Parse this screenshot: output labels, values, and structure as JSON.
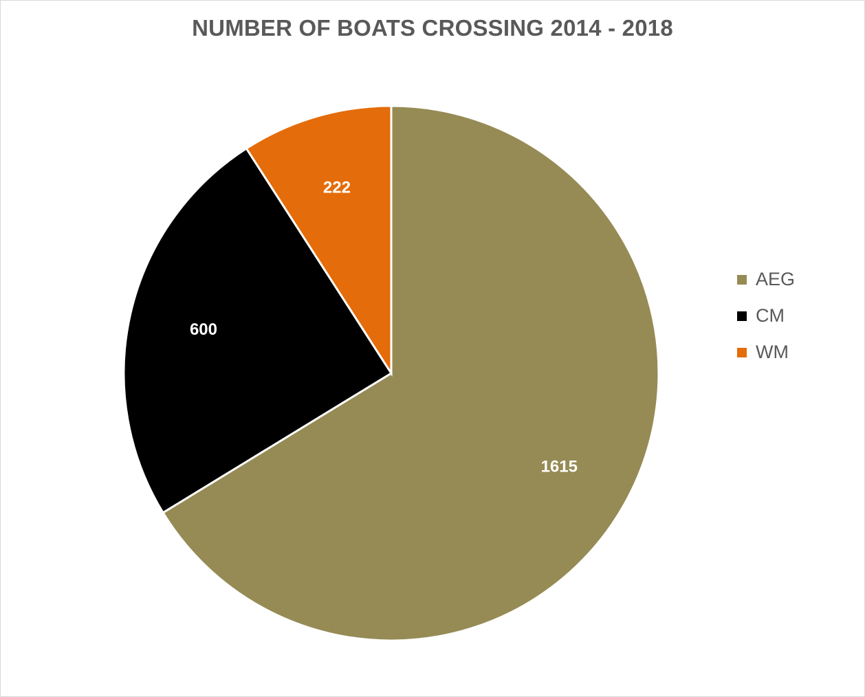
{
  "chart_data": {
    "type": "pie",
    "title": "NUMBER OF BOATS CROSSING 2014 - 2018",
    "categories": [
      "AEG",
      "CM",
      "WM"
    ],
    "values": [
      1615,
      600,
      222
    ],
    "data_labels": [
      "1615",
      "600",
      "222"
    ],
    "colors": [
      "#968b55",
      "#000000",
      "#e46c0a"
    ],
    "legend_position": "right"
  }
}
